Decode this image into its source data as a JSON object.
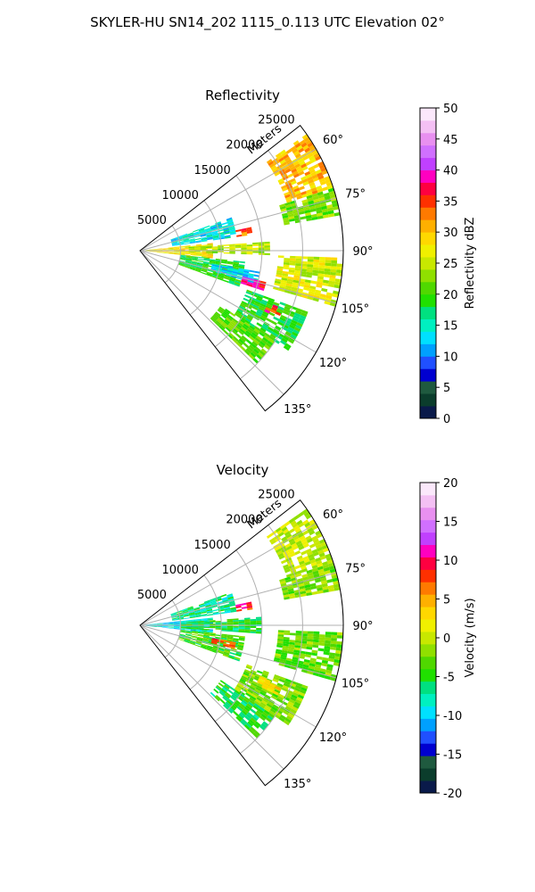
{
  "title": "SKYLER-HU  SN14_202  1115_0.113 UTC Elevation 02°",
  "chart_data": [
    {
      "type": "heatmap",
      "subtype": "polar-sector-ppi",
      "title": "Reflectivity",
      "radial_label": "Meters",
      "radial_ticks": [
        5000,
        10000,
        15000,
        20000,
        25000
      ],
      "radial_range": [
        0,
        25000
      ],
      "angle_range_deg": [
        52,
        142
      ],
      "angle_ticks": [
        "60°",
        "75°",
        "90°",
        "105°",
        "120°",
        "135°"
      ],
      "angle_tick_values": [
        60,
        75,
        90,
        105,
        120,
        135
      ],
      "grid": true,
      "colorbar": {
        "label": "Reflectivity dBZ",
        "range": [
          0,
          50
        ],
        "ticks": [
          0,
          5,
          10,
          15,
          20,
          25,
          30,
          35,
          40,
          45,
          50
        ],
        "colors": [
          "#0a1a4a",
          "#0b3d2c",
          "#1f5a3f",
          "#0000d0",
          "#2050ff",
          "#00a0ff",
          "#00e0ff",
          "#00f0c0",
          "#00e080",
          "#20e000",
          "#50d800",
          "#90e000",
          "#c8e800",
          "#f0f000",
          "#ffd800",
          "#ffb000",
          "#ff7a00",
          "#ff3000",
          "#ff0040",
          "#ff00c0",
          "#c040ff",
          "#d070ff",
          "#e890f0",
          "#f4c0f4",
          "#fbe8fb"
        ]
      },
      "echoes": [
        {
          "r0": 0,
          "r1": 9000,
          "a0": 84,
          "a1": 96,
          "value": 28
        },
        {
          "r0": 6000,
          "r1": 16000,
          "a0": 86,
          "a1": 92,
          "value": 24
        },
        {
          "r0": 4000,
          "r1": 12000,
          "a0": 70,
          "a1": 82,
          "value": 14
        },
        {
          "r0": 5000,
          "r1": 13000,
          "a0": 96,
          "a1": 110,
          "value": 19
        },
        {
          "r0": 9000,
          "r1": 15000,
          "a0": 100,
          "a1": 106,
          "value": 13
        },
        {
          "r0": 19000,
          "r1": 25000,
          "a0": 55,
          "a1": 72,
          "value": 30
        },
        {
          "r0": 18000,
          "r1": 25000,
          "a0": 72,
          "a1": 80,
          "value": 22
        },
        {
          "r0": 17000,
          "r1": 25000,
          "a0": 92,
          "a1": 106,
          "value": 26
        },
        {
          "r0": 14000,
          "r1": 22000,
          "a0": 110,
          "a1": 124,
          "value": 19
        },
        {
          "r0": 12000,
          "r1": 20000,
          "a0": 124,
          "a1": 134,
          "value": 21
        },
        {
          "r0": 12000,
          "r1": 14000,
          "a0": 78,
          "a1": 82,
          "value": 34
        },
        {
          "r0": 13000,
          "r1": 16000,
          "a0": 104,
          "a1": 108,
          "value": 38
        },
        {
          "r0": 17000,
          "r1": 19000,
          "a0": 112,
          "a1": 116,
          "value": 36
        }
      ]
    },
    {
      "type": "heatmap",
      "subtype": "polar-sector-ppi",
      "title": "Velocity",
      "radial_label": "Meters",
      "radial_ticks": [
        5000,
        10000,
        15000,
        20000,
        25000
      ],
      "radial_range": [
        0,
        25000
      ],
      "angle_range_deg": [
        52,
        142
      ],
      "angle_ticks": [
        "60°",
        "75°",
        "90°",
        "105°",
        "120°",
        "135°"
      ],
      "angle_tick_values": [
        60,
        75,
        90,
        105,
        120,
        135
      ],
      "grid": true,
      "colorbar": {
        "label": "Velocity (m/s)",
        "range": [
          -20,
          20
        ],
        "ticks": [
          -20,
          -15,
          -10,
          -5,
          0,
          5,
          10,
          15,
          20
        ],
        "colors": [
          "#0a1a4a",
          "#0b3d2c",
          "#1f5a3f",
          "#0000d0",
          "#2050ff",
          "#00a0ff",
          "#00e0ff",
          "#00f0c0",
          "#00e080",
          "#20e000",
          "#50d800",
          "#90e000",
          "#c8e800",
          "#f0f000",
          "#ffd800",
          "#ffb000",
          "#ff7a00",
          "#ff3000",
          "#ff0040",
          "#ff00c0",
          "#c040ff",
          "#d070ff",
          "#e890f0",
          "#f4c0f4",
          "#fbe8fb"
        ]
      },
      "echoes": [
        {
          "r0": 0,
          "r1": 9000,
          "a0": 84,
          "a1": 96,
          "value": -9
        },
        {
          "r0": 5000,
          "r1": 15000,
          "a0": 86,
          "a1": 94,
          "value": -5
        },
        {
          "r0": 4000,
          "r1": 12000,
          "a0": 70,
          "a1": 82,
          "value": -7
        },
        {
          "r0": 5000,
          "r1": 13000,
          "a0": 96,
          "a1": 110,
          "value": -4
        },
        {
          "r0": 19000,
          "r1": 25000,
          "a0": 55,
          "a1": 72,
          "value": 0
        },
        {
          "r0": 18000,
          "r1": 25000,
          "a0": 72,
          "a1": 80,
          "value": -2
        },
        {
          "r0": 17000,
          "r1": 25000,
          "a0": 92,
          "a1": 106,
          "value": -3
        },
        {
          "r0": 14000,
          "r1": 22000,
          "a0": 110,
          "a1": 124,
          "value": -2
        },
        {
          "r0": 12000,
          "r1": 20000,
          "a0": 124,
          "a1": 134,
          "value": -5
        },
        {
          "r0": 9000,
          "r1": 12000,
          "a0": 100,
          "a1": 104,
          "value": 8
        },
        {
          "r0": 12000,
          "r1": 14000,
          "a0": 78,
          "a1": 82,
          "value": 9
        },
        {
          "r0": 16000,
          "r1": 19000,
          "a0": 113,
          "a1": 117,
          "value": 3
        }
      ]
    }
  ]
}
